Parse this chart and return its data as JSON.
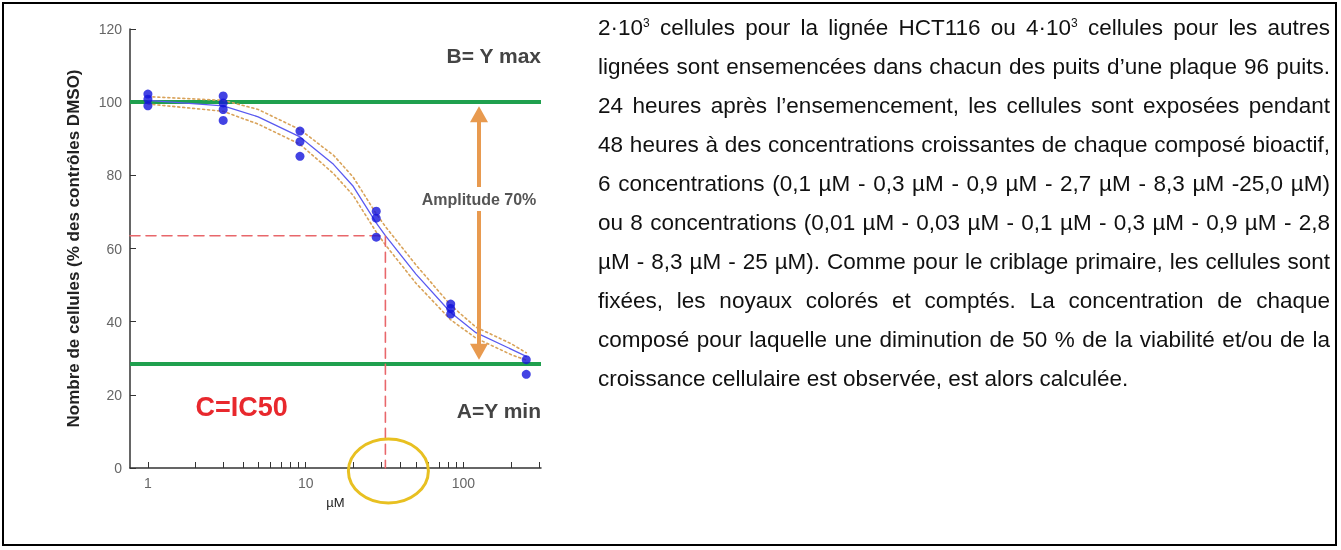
{
  "chart_data": {
    "type": "scatter",
    "xlabel": "µM",
    "ylabel": "Nombre de cellules (% des contrôles DMSO)",
    "log": "x",
    "xlim": [
      0.77,
      310
    ],
    "ylim": [
      0,
      120
    ],
    "xticks": [
      1,
      {
        "value": 2,
        "label": null
      },
      {
        "value": 3,
        "label": null
      },
      {
        "value": 4,
        "label": null
      },
      {
        "value": 5,
        "label": null
      },
      {
        "value": 6,
        "label": null
      },
      {
        "value": 7,
        "label": null
      },
      {
        "value": 8,
        "label": null
      },
      {
        "value": 9,
        "label": null
      },
      10,
      {
        "value": 20,
        "label": null
      },
      {
        "value": 30,
        "label": null
      },
      {
        "value": 40,
        "label": null
      },
      {
        "value": 50,
        "label": null
      },
      {
        "value": 60,
        "label": null
      },
      {
        "value": 70,
        "label": null
      },
      {
        "value": 80,
        "label": null
      },
      {
        "value": 90,
        "label": null
      },
      100,
      {
        "value": 200,
        "label": null
      },
      {
        "value": 300,
        "label": null
      }
    ],
    "yticks": [
      0,
      20,
      40,
      60,
      80,
      100,
      120
    ],
    "grid": false,
    "marker": "circle",
    "series": [
      {
        "color": "#1414dc",
        "x": [
          1,
          1,
          1,
          3,
          3,
          3,
          3,
          9.2,
          9.2,
          9.2,
          28,
          28,
          28,
          83,
          83,
          83,
          250,
          250
        ],
        "values": [
          102.2,
          100.8,
          99,
          101.7,
          99.8,
          98,
          95,
          92.1,
          89.2,
          85.2,
          70.2,
          68.3,
          63.1,
          44.8,
          43.6,
          42.1,
          29.6,
          25.6
        ]
      },
      {
        "type": "line",
        "color": "#5a5af0",
        "line_style": "solid",
        "marker": "none",
        "x": [
          1,
          3,
          5,
          9.2,
          15,
          20,
          28,
          32,
          50,
          83,
          120,
          200,
          250
        ],
        "values": [
          100.5,
          99,
          96,
          90.5,
          83,
          77,
          67,
          63.5,
          53,
          42.5,
          37,
          32.5,
          30.5
        ]
      },
      {
        "type": "line",
        "color": "#d9a35a",
        "line_style": "dotted",
        "marker": "none",
        "x": [
          1,
          3,
          5,
          9.2,
          15,
          20,
          28,
          32,
          50,
          83,
          120,
          200,
          250
        ],
        "values": [
          101.5,
          100.5,
          98,
          92.5,
          85.5,
          79.5,
          69.5,
          66,
          55.5,
          44.5,
          38.5,
          34,
          31.5
        ]
      },
      {
        "type": "line",
        "color": "#d9a35a",
        "line_style": "dotted",
        "marker": "none",
        "x": [
          1,
          3,
          5,
          9.2,
          15,
          20,
          28,
          32,
          50,
          83,
          120,
          200,
          250
        ],
        "values": [
          99.5,
          97.5,
          94,
          88.5,
          80.5,
          74.5,
          64.5,
          61,
          50.5,
          40.5,
          35.5,
          31,
          29.5
        ]
      },
      {
        "type": "line",
        "color": "#e8676b",
        "line_style": "dashed",
        "marker": "none",
        "x": [
          0.77,
          32,
          32
        ],
        "values": [
          63.5,
          63.5,
          0
        ]
      }
    ],
    "ref_lines": [
      {
        "axis": "y",
        "value": 100,
        "label": "B= Y max",
        "color": "#1fa04e"
      },
      {
        "axis": "y",
        "value": 28.5,
        "label": "A=Y min",
        "color": "#1fa04e"
      }
    ],
    "annotations": [
      "C=IC50",
      "Amplitude 70%",
      "2·10$^{3}$ cellules pour la lignée HCT116 ou 4·10$^{3}$ cellules pour les autres lignées sont ensemencées dans chacun des puits d’une plaque 96 puits. 24 heures après l’ensemencement, les cellules sont exposées pendant 48 heures à des concentrations croissantes de chaque composé bioactif, 6 concentrations (0,1 µM - 0,3 µM - 0,9 µM - 2,7 µM - 8,3 µM -25,0 µM) ou 8 concentrations (0,01 µM - 0,03 µM - 0,1 µM - 0,3 µM - 0,9 µM - 2,8 µM - 8,3 µM - 25 µM). Comme pour le criblage primaire, les cellules sont fixées, les noyaux colorés et comptés. La concentration de chaque composé pour laquelle une diminution de 50 % de la viabilité et/ou de la croissance cellulaire est observée, est alors calculée."
    ]
  }
}
